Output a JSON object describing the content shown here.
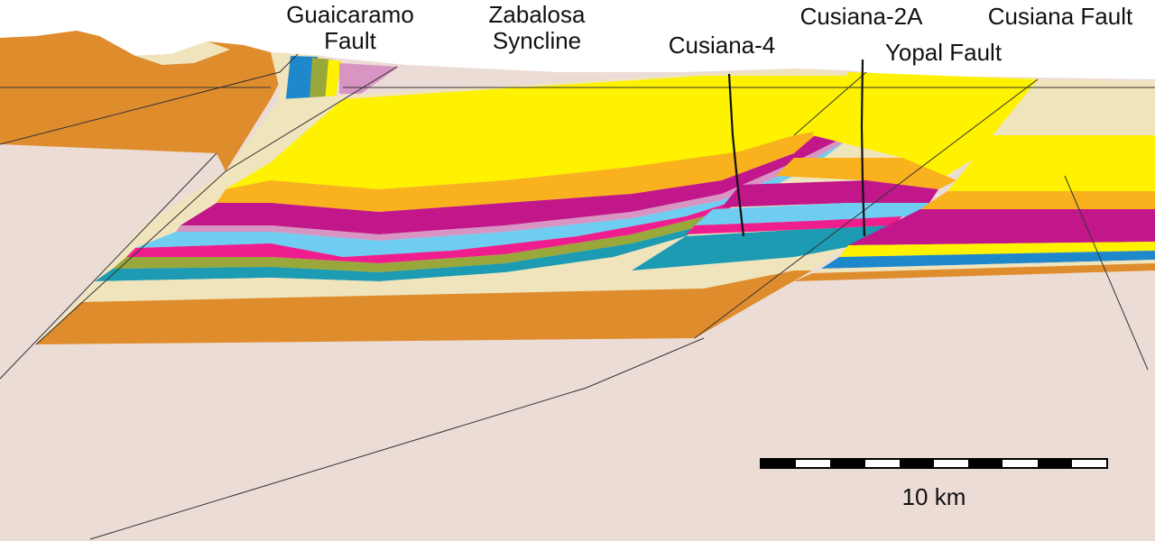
{
  "labels": {
    "guaicaramo_fault_line1": "Guaicaramo",
    "guaicaramo_fault_line2": "Fault",
    "zabalosa_syncline_line1": "Zabalosa",
    "zabalosa_syncline_line2": "Syncline",
    "cusiana_4": "Cusiana-4",
    "cusiana_2a": "Cusiana-2A",
    "yopal_fault": "Yopal Fault",
    "cusiana_fault": "Cusiana Fault"
  },
  "scale_bar": {
    "label": "10 km",
    "segments": 10
  },
  "colors": {
    "basement": "#ecdcd6",
    "orange_brown": "#df8c2d",
    "orange": "#f9b11d",
    "yellow": "#fef200",
    "cream": "#efe4bc",
    "magenta": "#c2178a",
    "pink": "#ee1e8e",
    "light_blue": "#6fcdf1",
    "teal": "#1c9bb3",
    "olive": "#9aa73a",
    "lavender": "#d894c3",
    "blue": "#1e88cb",
    "line": "#222222"
  }
}
